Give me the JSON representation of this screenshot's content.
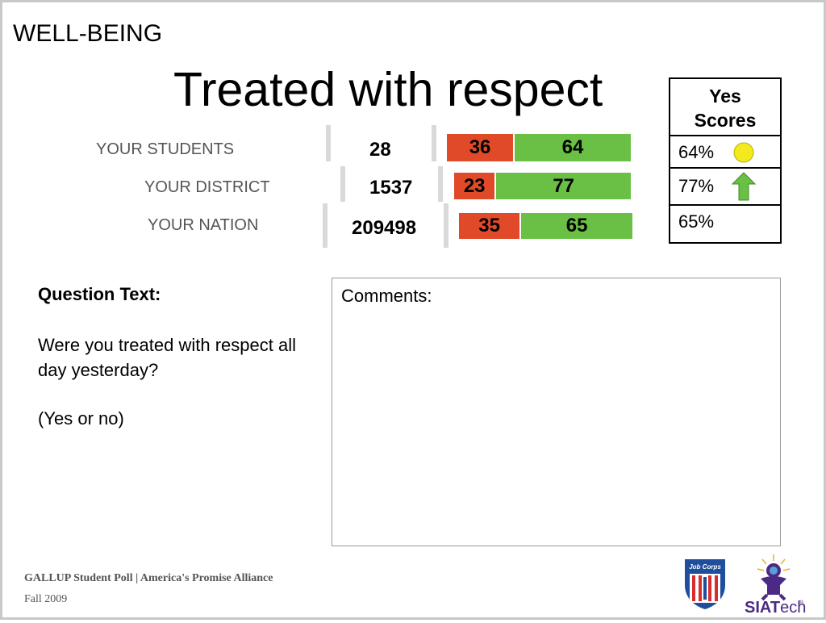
{
  "header": {
    "section": "WELL-BEING",
    "title": "Treated with respect"
  },
  "chart_data": {
    "type": "bar",
    "stacked": true,
    "categories": [
      "YOUR STUDENTS",
      "YOUR DISTRICT",
      "YOUR NATION"
    ],
    "counts": [
      "28",
      "1537",
      "209498"
    ],
    "series": [
      {
        "key": "no",
        "values": [
          36,
          23,
          35
        ],
        "color": "#e04a28"
      },
      {
        "key": "yes",
        "values": [
          64,
          77,
          65
        ],
        "color": "#6ac045"
      }
    ]
  },
  "yes_scores": {
    "header_line1": "Yes",
    "header_line2": "Scores",
    "rows": [
      {
        "value": "64%",
        "icon": "yellow-circle-icon"
      },
      {
        "value": "77%",
        "icon": "green-up-arrow-icon"
      },
      {
        "value": "65%",
        "icon": ""
      }
    ]
  },
  "question": {
    "heading": "Question Text:",
    "text": "Were you treated with respect all day yesterday?",
    "choices": "(Yes or no)"
  },
  "comments": {
    "label": "Comments:"
  },
  "footer": {
    "source": "GALLUP Student Poll | America's Promise Alliance",
    "date": "Fall 2009",
    "logo_text_1": "Job Corps",
    "logo_text_2_a": "SIAT",
    "logo_text_2_b": "ech",
    "logo_trademark": "®"
  },
  "colors": {
    "no": "#e04a28",
    "yes": "#6ac045",
    "yellow_indicator": "#f2ea1c",
    "green_arrow": "#6ac045",
    "job_corps_blue": "#1f4e9c",
    "job_corps_red": "#d62f2f",
    "siatech_purple": "#4b2a86"
  }
}
